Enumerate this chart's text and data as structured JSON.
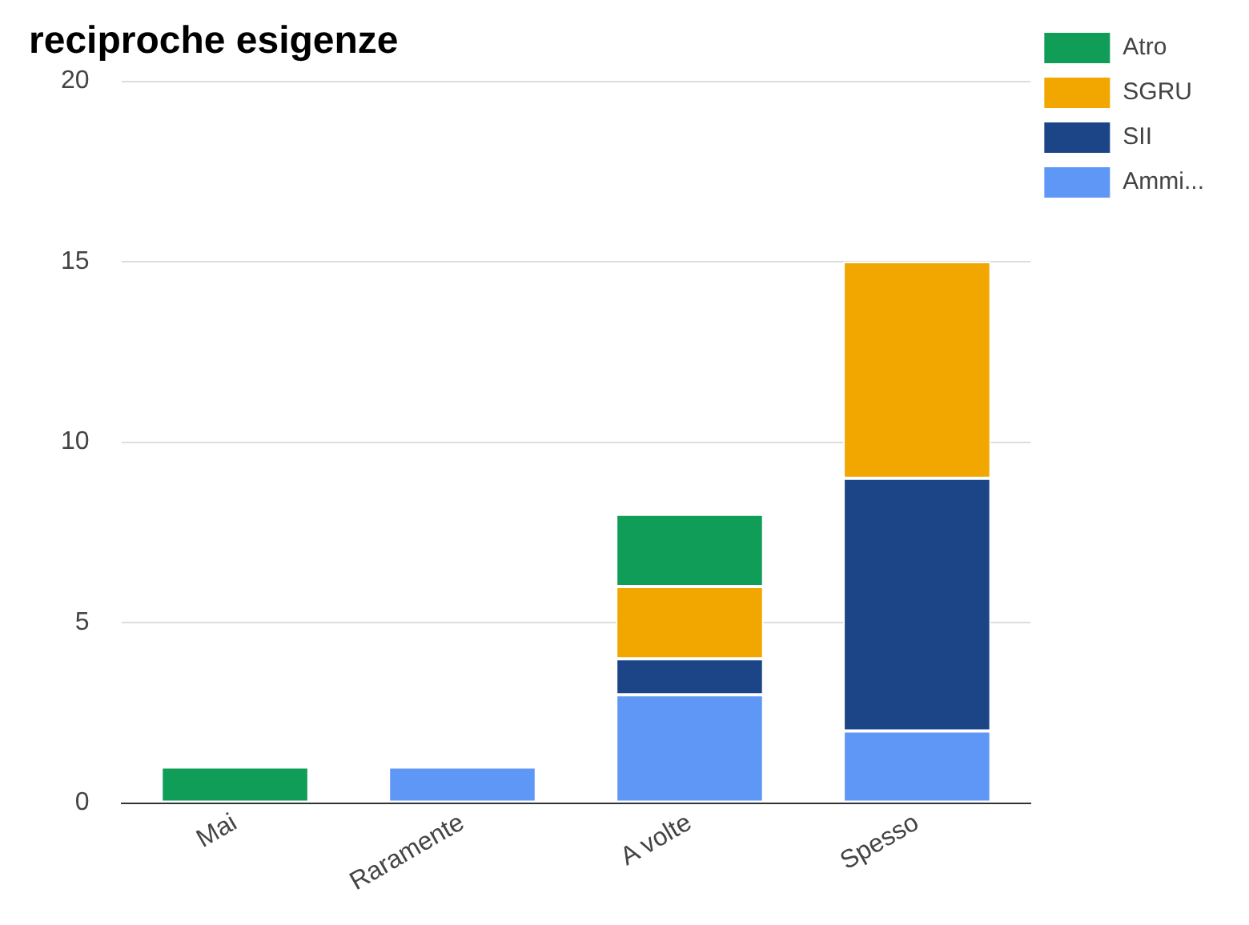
{
  "chart_data": {
    "type": "bar",
    "title": "reciproche esigenze",
    "categories": [
      "Mai",
      "Raramente",
      "A volte",
      "Spesso"
    ],
    "stacked": true,
    "series": [
      {
        "name": "Ammi...",
        "color": "#5e97f6",
        "values": [
          0,
          1,
          3,
          2
        ]
      },
      {
        "name": "SII",
        "color": "#1c4587",
        "values": [
          0,
          0,
          1,
          7
        ]
      },
      {
        "name": "SGRU",
        "color": "#f2a600",
        "values": [
          0,
          0,
          2,
          6
        ]
      },
      {
        "name": "Atro",
        "color": "#0f9d58",
        "values": [
          1,
          0,
          2,
          0
        ]
      }
    ],
    "ylim": [
      0,
      20
    ],
    "yticks": [
      0,
      5,
      10,
      15,
      20
    ],
    "grid": "y",
    "legend": "top right"
  }
}
